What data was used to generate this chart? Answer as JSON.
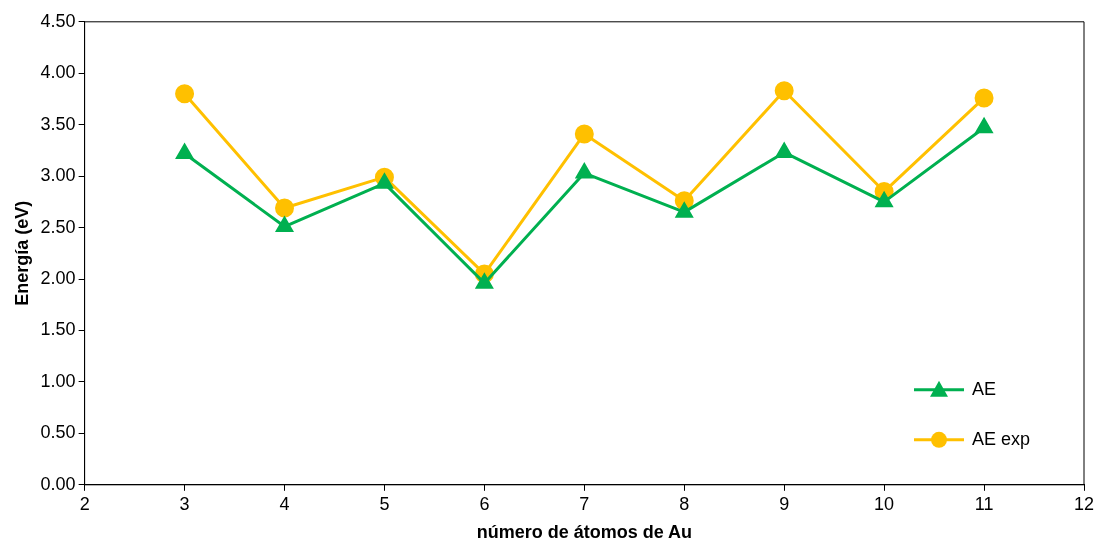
{
  "chart_data": {
    "type": "line",
    "xlabel": "número de átomos de Au",
    "ylabel": "Energía (eV)",
    "x": [
      3,
      4,
      5,
      6,
      7,
      8,
      9,
      10,
      11
    ],
    "series": [
      {
        "name": "AE",
        "color": "#00b050",
        "marker": "triangle",
        "values": [
          3.22,
          2.51,
          2.93,
          1.96,
          3.03,
          2.65,
          3.23,
          2.75,
          3.47
        ]
      },
      {
        "name": "AE exp",
        "color": "#ffc000",
        "marker": "circle",
        "values": [
          3.8,
          2.69,
          2.99,
          2.05,
          3.41,
          2.76,
          3.83,
          2.85,
          3.76
        ]
      }
    ],
    "xlim": [
      2,
      12
    ],
    "xticks": [
      2,
      3,
      4,
      5,
      6,
      7,
      8,
      9,
      10,
      11,
      12
    ],
    "ylim": [
      0,
      4.5
    ],
    "yticks": [
      {
        "value": 0,
        "label": "0.00"
      },
      {
        "value": 0.5,
        "label": "0.50"
      },
      {
        "value": 1,
        "label": "1.00"
      },
      {
        "value": 1.5,
        "label": "1.50"
      },
      {
        "value": 2,
        "label": "2.00"
      },
      {
        "value": 2.5,
        "label": "2.50"
      },
      {
        "value": 3,
        "label": "3.00"
      },
      {
        "value": 3.5,
        "label": "3.50"
      },
      {
        "value": 4,
        "label": "4.00"
      },
      {
        "value": 4.5,
        "label": "4.50"
      }
    ],
    "grid": false,
    "legend": "bottom right",
    "line_style": "solid"
  }
}
